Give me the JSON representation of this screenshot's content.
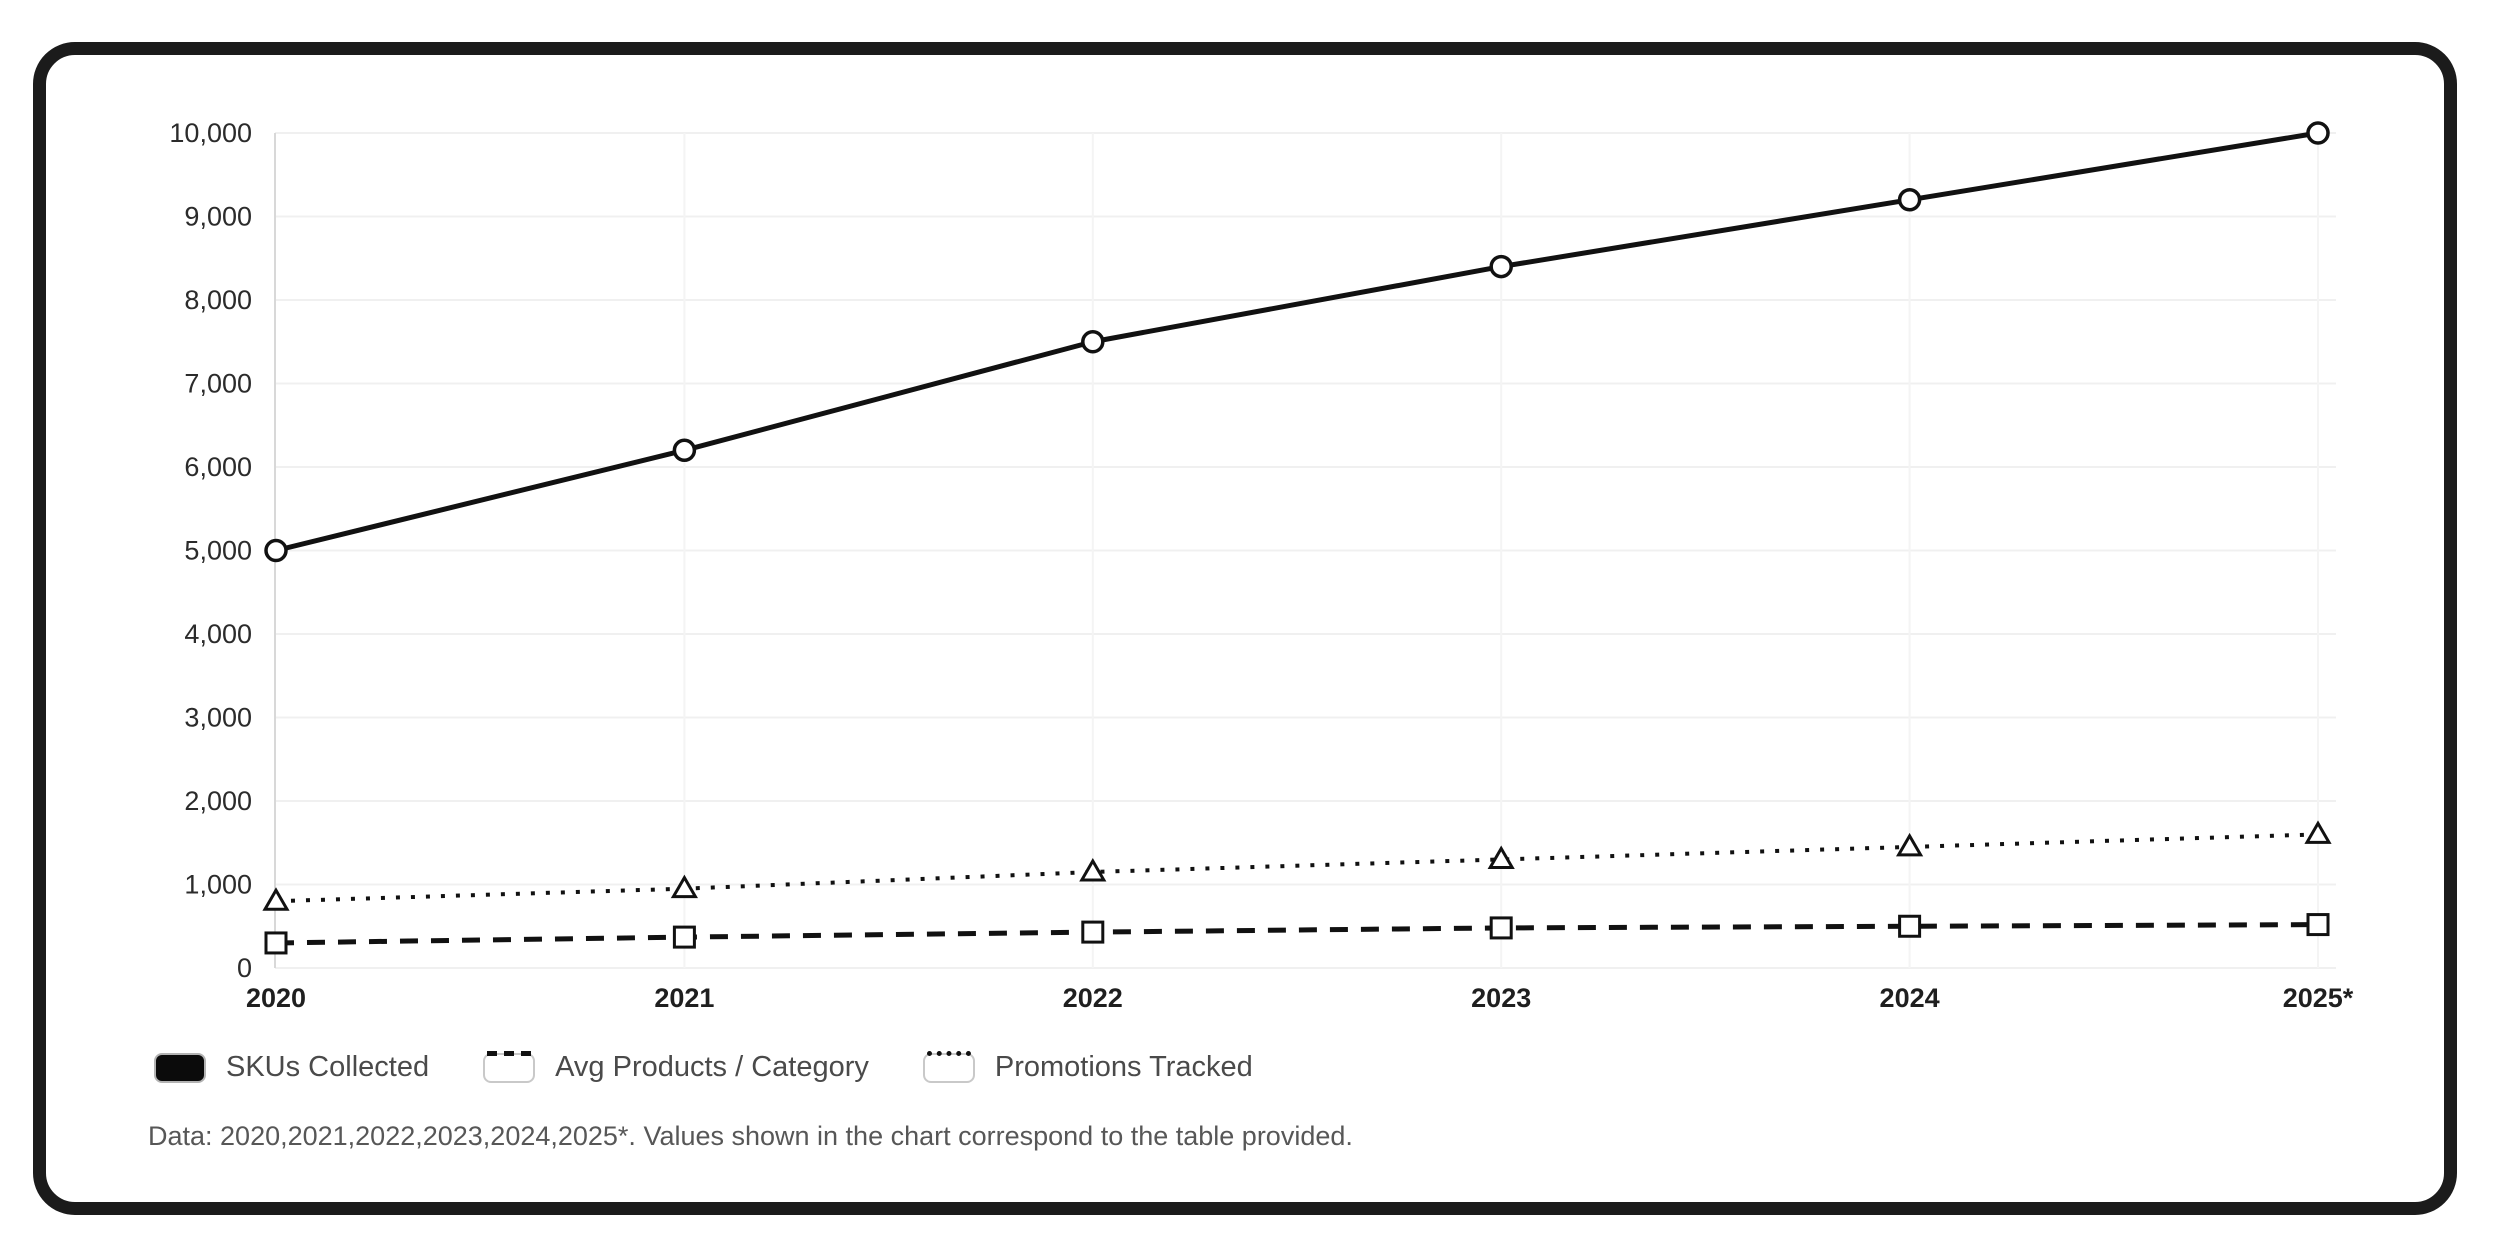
{
  "chart_data": {
    "type": "line",
    "categories": [
      "2020",
      "2021",
      "2022",
      "2023",
      "2024",
      "2025*"
    ],
    "series": [
      {
        "name": "SKUs Collected",
        "values": [
          5000,
          6200,
          7500,
          8400,
          9200,
          10000
        ],
        "style": "solid",
        "marker": "circle"
      },
      {
        "name": "Avg Products / Category",
        "values": [
          300,
          370,
          430,
          480,
          500,
          520
        ],
        "style": "dashed",
        "marker": "square"
      },
      {
        "name": "Promotions Tracked",
        "values": [
          800,
          950,
          1150,
          1300,
          1450,
          1600
        ],
        "style": "dotted",
        "marker": "triangle"
      }
    ],
    "title": "",
    "xlabel": "",
    "ylabel": "",
    "ylim": [
      0,
      10000
    ],
    "ytick_step": 1000,
    "yticks": [
      "0",
      "1,000",
      "2,000",
      "3,000",
      "4,000",
      "5,000",
      "6,000",
      "7,000",
      "8,000",
      "9,000",
      "10,000"
    ],
    "grid": "on",
    "legend_position": "bottom",
    "colors": {
      "line": "#111111",
      "grid": "#f0f0f0",
      "vgrid": "#f4f4f4",
      "axis": "#d8d8d8",
      "marker_fill": "#ffffff"
    }
  },
  "legend": {
    "items": [
      {
        "label": "SKUs Collected"
      },
      {
        "label": "Avg Products / Category"
      },
      {
        "label": "Promotions Tracked"
      }
    ]
  },
  "footer": {
    "text": "Data: 2020,2021,2022,2023,2024,2025*. Values shown in the chart correspond to the table provided."
  }
}
